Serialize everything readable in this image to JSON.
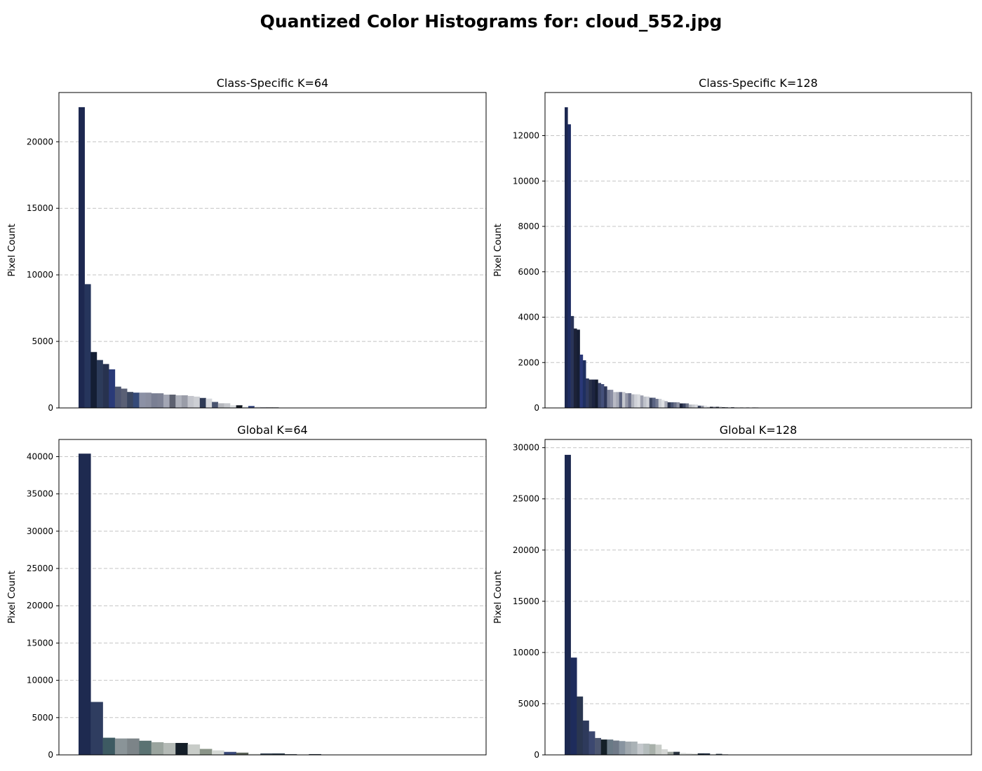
{
  "figure_title": "Quantized Color Histograms for: cloud_552.jpg",
  "chart_data": [
    {
      "type": "bar",
      "title": "Class-Specific K=64",
      "xlabel": "",
      "ylabel": "Pixel Count",
      "ylim": [
        0,
        23700
      ],
      "yticks": [
        0,
        5000,
        10000,
        15000,
        20000
      ],
      "grid": "y-dashed",
      "n_bins": 64,
      "values": [
        22600,
        9300,
        4200,
        3600,
        3300,
        2900,
        1600,
        1450,
        1200,
        1150,
        1150,
        1150,
        1100,
        1100,
        1000,
        1000,
        950,
        950,
        900,
        850,
        750,
        700,
        450,
        350,
        350,
        200,
        200,
        100,
        150,
        80,
        60,
        40,
        40
      ],
      "colors": [
        "#1d2850",
        "#26355c",
        "#141e34",
        "#2c3b5a",
        "#27324f",
        "#2a3a78",
        "#4d5570",
        "#5a6075",
        "#3a4660",
        "#354a78",
        "#8c91a5",
        "#8a8ea0",
        "#7a7f93",
        "#7e8295",
        "#a3a6b4",
        "#5d6170",
        "#aeb1bb",
        "#9a9da8",
        "#c3c5cc",
        "#cdcfd4",
        "#2f3a55",
        "#d7d9dd",
        "#4a5570",
        "#b5b7bd",
        "#c5c7cc",
        "#dde0e3",
        "#121820",
        "#e6e8ea",
        "#3b4a80",
        "#d0d2d6",
        "#9fa2ab",
        "#22262e",
        "#2a2e38"
      ]
    },
    {
      "type": "bar",
      "title": "Class-Specific K=128",
      "xlabel": "",
      "ylabel": "Pixel Count",
      "ylim": [
        0,
        13900
      ],
      "yticks": [
        0,
        2000,
        4000,
        6000,
        8000,
        10000,
        12000
      ],
      "grid": "y-dashed",
      "n_bins": 128,
      "values": [
        13250,
        12500,
        4050,
        3500,
        3450,
        2350,
        2100,
        1300,
        1250,
        1250,
        1250,
        1100,
        1050,
        950,
        800,
        800,
        700,
        700,
        700,
        700,
        650,
        650,
        600,
        600,
        600,
        550,
        500,
        500,
        450,
        450,
        400,
        400,
        350,
        300,
        250,
        250,
        250,
        250,
        200,
        200,
        200,
        150,
        150,
        150,
        100,
        100,
        100,
        50,
        50,
        50,
        50,
        50,
        30,
        30,
        30,
        30,
        20,
        20,
        20,
        20,
        20,
        10,
        20,
        20,
        10
      ],
      "colors": [
        "#1c2750",
        "#1e2c62",
        "#2a3458",
        "#1c2238",
        "#161e34",
        "#2a3878",
        "#1f2f60",
        "#303a60",
        "#283048",
        "#1c2440",
        "#141c30",
        "#3a4468",
        "#44507a",
        "#2d3658",
        "#7a7f96",
        "#8a8ea3",
        "#b8bac4",
        "#a6a9b6",
        "#5b627e",
        "#c4c6cd",
        "#9598a8",
        "#6c7189",
        "#b0b3bd",
        "#cfd1d7",
        "#d9dbdf",
        "#9c9fae",
        "#bfc2ca",
        "#d0d2d8",
        "#3e4762",
        "#5a6382",
        "#737a92",
        "#cdd0d6",
        "#dfe1e4",
        "#a9acb8",
        "#2e3650",
        "#4a5472",
        "#6a7088",
        "#8e92a3",
        "#1e2640",
        "#3a4360",
        "#6d7387",
        "#b5b8c0",
        "#c8cad0",
        "#d8dadf",
        "#3d4660",
        "#9396a4",
        "#e2e4e7",
        "#c2c4ca",
        "#1f2638",
        "#7d8193",
        "#2c3242",
        "#aeb0b8",
        "#141a28",
        "#5e6476",
        "#d4d6da",
        "#31384a",
        "#8c8f9b",
        "#bcbec4",
        "#474d5e",
        "#dcdee1",
        "#22293a",
        "#9ea1ab",
        "#2b3040",
        "#6a6f7e",
        "#c0c2c7"
      ]
    },
    {
      "type": "bar",
      "title": "Global K=64",
      "xlabel": "",
      "ylabel": "Pixel Count",
      "ylim": [
        0,
        42300
      ],
      "yticks": [
        0,
        5000,
        10000,
        15000,
        20000,
        25000,
        30000,
        35000,
        40000
      ],
      "grid": "y-dashed",
      "n_bins": 32,
      "values": [
        40400,
        7100,
        2300,
        2200,
        2200,
        1900,
        1700,
        1600,
        1600,
        1400,
        800,
        600,
        400,
        300,
        150,
        200,
        200,
        100,
        50,
        100
      ],
      "colors": [
        "#1e2a50",
        "#2f3d60",
        "#3d5a62",
        "#8a9498",
        "#7c8488",
        "#5a7272",
        "#9aa49e",
        "#b4bab6",
        "#141e28",
        "#c8ccc8",
        "#8a9488",
        "#d6dad6",
        "#3a4a78",
        "#5a6258",
        "#e2e4e2",
        "#3a4858",
        "#2a3a48",
        "#4a5660",
        "#c4c8c4",
        "#1e2a38"
      ]
    },
    {
      "type": "bar",
      "title": "Global K=128",
      "xlabel": "",
      "ylabel": "Pixel Count",
      "ylim": [
        0,
        30800
      ],
      "yticks": [
        0,
        5000,
        10000,
        15000,
        20000,
        25000,
        30000
      ],
      "grid": "y-dashed",
      "n_bins": 64,
      "values": [
        29300,
        9500,
        5700,
        3350,
        2300,
        1650,
        1500,
        1500,
        1400,
        1350,
        1300,
        1300,
        1100,
        1100,
        1050,
        1000,
        550,
        300,
        300,
        200,
        150,
        100,
        150,
        150,
        50,
        100,
        50,
        30
      ],
      "colors": [
        "#1c2850",
        "#1e2c5c",
        "#2a3650",
        "#2e3a5c",
        "#3c4870",
        "#4c5670",
        "#142028",
        "#6a7a86",
        "#707a88",
        "#8894a0",
        "#a0a8ae",
        "#aab2b6",
        "#c4c8cc",
        "#b4bcbc",
        "#a8b0aa",
        "#c8ccc8",
        "#d4d6d4",
        "#9aa09a",
        "#2a3440",
        "#e0e2e0",
        "#d8dad8",
        "#c0c4c0",
        "#1a2838",
        "#223044",
        "#bcc0c4",
        "#2c3a48",
        "#6a7078",
        "#9ca0a4"
      ]
    }
  ]
}
